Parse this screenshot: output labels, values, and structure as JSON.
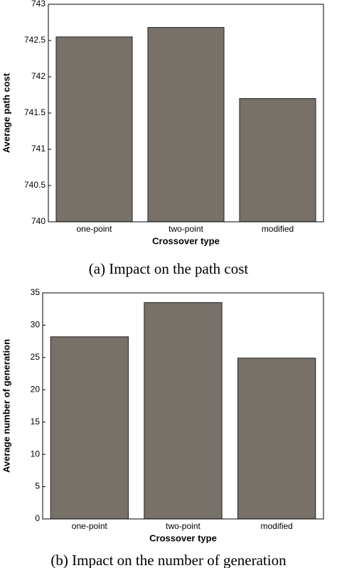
{
  "chart_data": [
    {
      "type": "bar",
      "ylabel": "Average path cost",
      "xlabel": "Crossover type",
      "caption": "(a) Impact on the path cost",
      "categories": [
        "one-point",
        "two-point",
        "modified"
      ],
      "values": [
        742.55,
        742.68,
        741.7
      ],
      "color": "#777169",
      "ylim": [
        740,
        743
      ],
      "yticks": [
        740,
        740.5,
        741,
        741.5,
        742,
        742.5,
        743
      ],
      "grid": false
    },
    {
      "type": "bar",
      "ylabel": "Average number of generation",
      "xlabel": "Crossover type",
      "caption": "(b) Impact on the number of generation",
      "categories": [
        "one-point",
        "two-point",
        "modified"
      ],
      "values": [
        28.2,
        33.5,
        24.9
      ],
      "color": "#777169",
      "ylim": [
        0,
        35
      ],
      "yticks": [
        0,
        5,
        10,
        15,
        20,
        25,
        30,
        35
      ],
      "grid": false
    }
  ]
}
